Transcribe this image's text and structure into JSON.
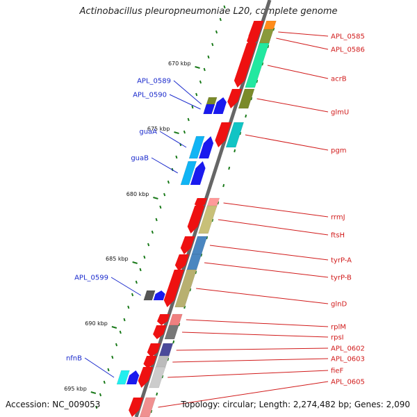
{
  "title": "Actinobacillus pleuropneumoniae L20, complete genome",
  "footer": {
    "accession": "Accession: NC_009053",
    "summary": "Topology: circular; Length: 2,274,482 bp; Genes: 2,090"
  },
  "colors": {
    "forward_label": "#d11a1a",
    "reverse_label": "#1a2acc",
    "backbone": "#666666",
    "tick": "#1a7a1a"
  },
  "kbp_ticks": [
    "670 kbp",
    "675 kbp",
    "680 kbp",
    "685 kbp",
    "690 kbp",
    "695 kbp"
  ],
  "forward_genes": [
    {
      "name": "APL_0585"
    },
    {
      "name": "APL_0586"
    },
    {
      "name": "acrB"
    },
    {
      "name": "glmU"
    },
    {
      "name": "pgm"
    },
    {
      "name": "rrmJ"
    },
    {
      "name": "ftsH"
    },
    {
      "name": "tyrP-A"
    },
    {
      "name": "tyrP-B"
    },
    {
      "name": "glnD"
    },
    {
      "name": "rplM"
    },
    {
      "name": "rpsI"
    },
    {
      "name": "APL_0602"
    },
    {
      "name": "APL_0603"
    },
    {
      "name": "fieF"
    },
    {
      "name": "APL_0605"
    }
  ],
  "reverse_genes": [
    {
      "name": "APL_0589"
    },
    {
      "name": "APL_0590"
    },
    {
      "name": "guaA"
    },
    {
      "name": "guaB"
    },
    {
      "name": "APL_0599"
    },
    {
      "name": "nfnB"
    }
  ]
}
